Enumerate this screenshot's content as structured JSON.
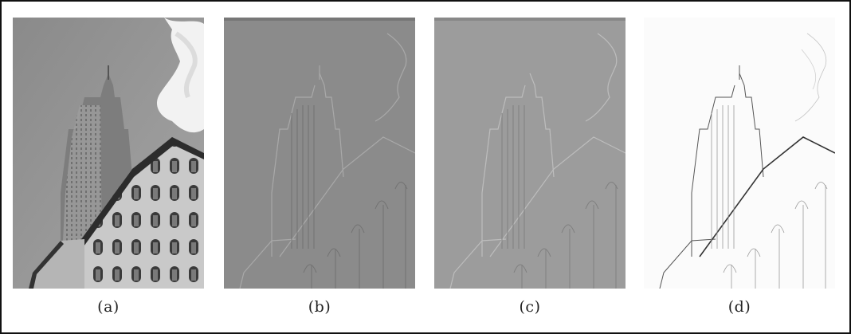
{
  "panels": [
    {
      "id": "a",
      "caption": "(a)",
      "style": "photo"
    },
    {
      "id": "b",
      "caption": "(b)",
      "style": "emboss-dark"
    },
    {
      "id": "c",
      "caption": "(c)",
      "style": "emboss-light"
    },
    {
      "id": "d",
      "caption": "(d)",
      "style": "sketch"
    }
  ]
}
